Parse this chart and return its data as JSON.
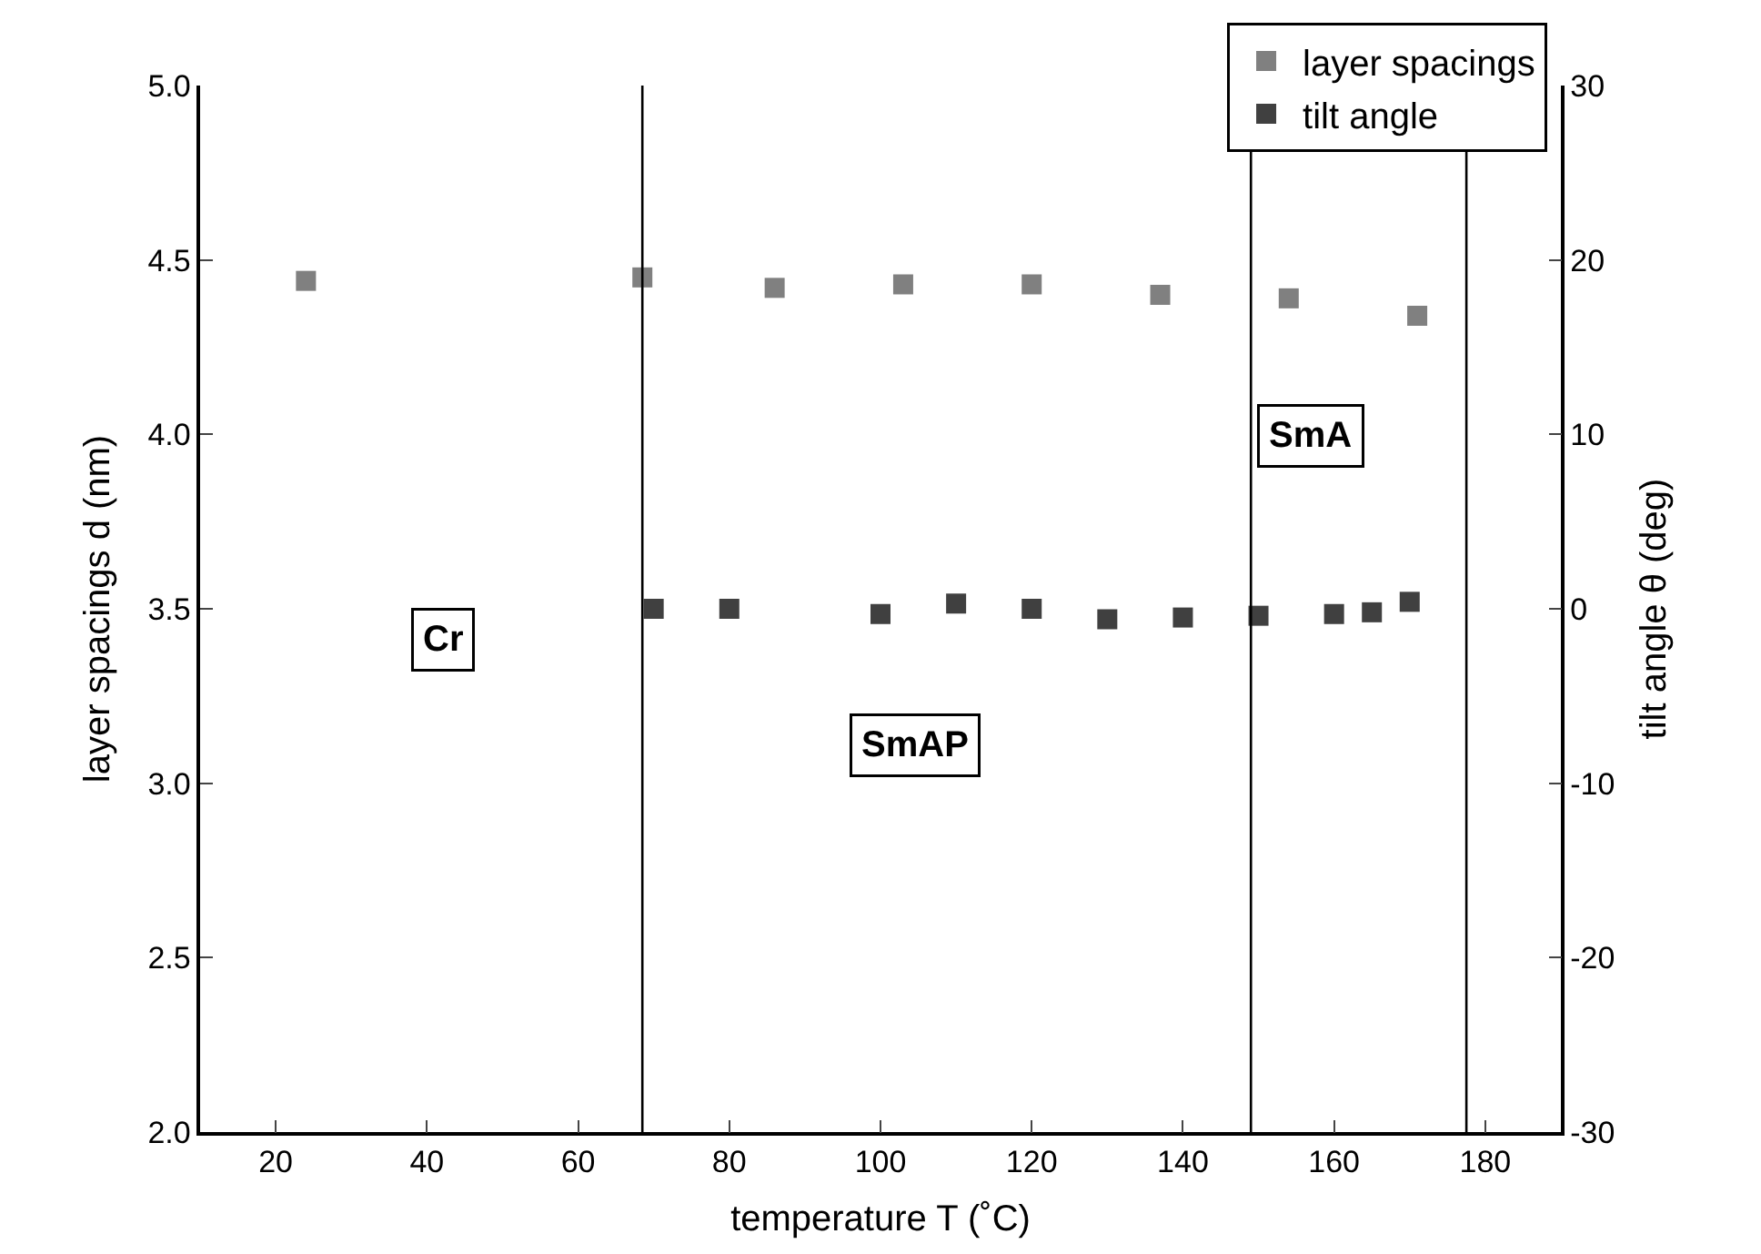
{
  "chart_data": {
    "type": "scatter",
    "xlabel": "temperature T (˚C)",
    "ylabel": "layer spacings d (nm)",
    "y2label": "tilt angle θ (deg)",
    "xlim": [
      10,
      190
    ],
    "xticks": [
      20,
      40,
      60,
      80,
      100,
      120,
      140,
      160,
      180
    ],
    "ylim": [
      2.0,
      5.0
    ],
    "yticks": [
      {
        "value": 2.0,
        "label": "2.0"
      },
      {
        "value": 2.5,
        "label": "2.5"
      },
      {
        "value": 3.0,
        "label": "3.0"
      },
      {
        "value": 3.5,
        "label": "3.5"
      },
      {
        "value": 4.0,
        "label": "4.0"
      },
      {
        "value": 4.5,
        "label": "4.5"
      },
      {
        "value": 5.0,
        "label": "5.0"
      }
    ],
    "y2lim": [
      -30,
      30
    ],
    "y2ticks": [
      -30,
      -20,
      -10,
      0,
      10,
      20,
      30
    ],
    "series": [
      {
        "name": "layer spacings",
        "color": "#808080",
        "x": [
          24,
          68.5,
          86,
          103,
          120,
          137,
          154,
          171
        ],
        "values": [
          4.44,
          4.45,
          4.42,
          4.43,
          4.43,
          4.4,
          4.39,
          4.34
        ]
      },
      {
        "name": "tilt angle",
        "color": "#404040",
        "axis": "y2",
        "x": [
          70,
          80,
          100,
          110,
          120,
          130,
          140,
          150,
          160,
          165,
          170
        ],
        "values": [
          0,
          0,
          -0.3,
          0.3,
          0,
          -0.6,
          -0.5,
          -0.4,
          -0.3,
          -0.2,
          0.4
        ]
      }
    ],
    "ref_lines": [
      {
        "axis": "x",
        "value": 68.5,
        "color": "#000000"
      },
      {
        "axis": "x",
        "value": 149,
        "color": "#000000"
      },
      {
        "axis": "x",
        "value": 177.5,
        "color": "#000000"
      }
    ],
    "annotations": [
      "Cr",
      "SmAP",
      "SmA"
    ],
    "marker": "square",
    "legend": "top right"
  }
}
